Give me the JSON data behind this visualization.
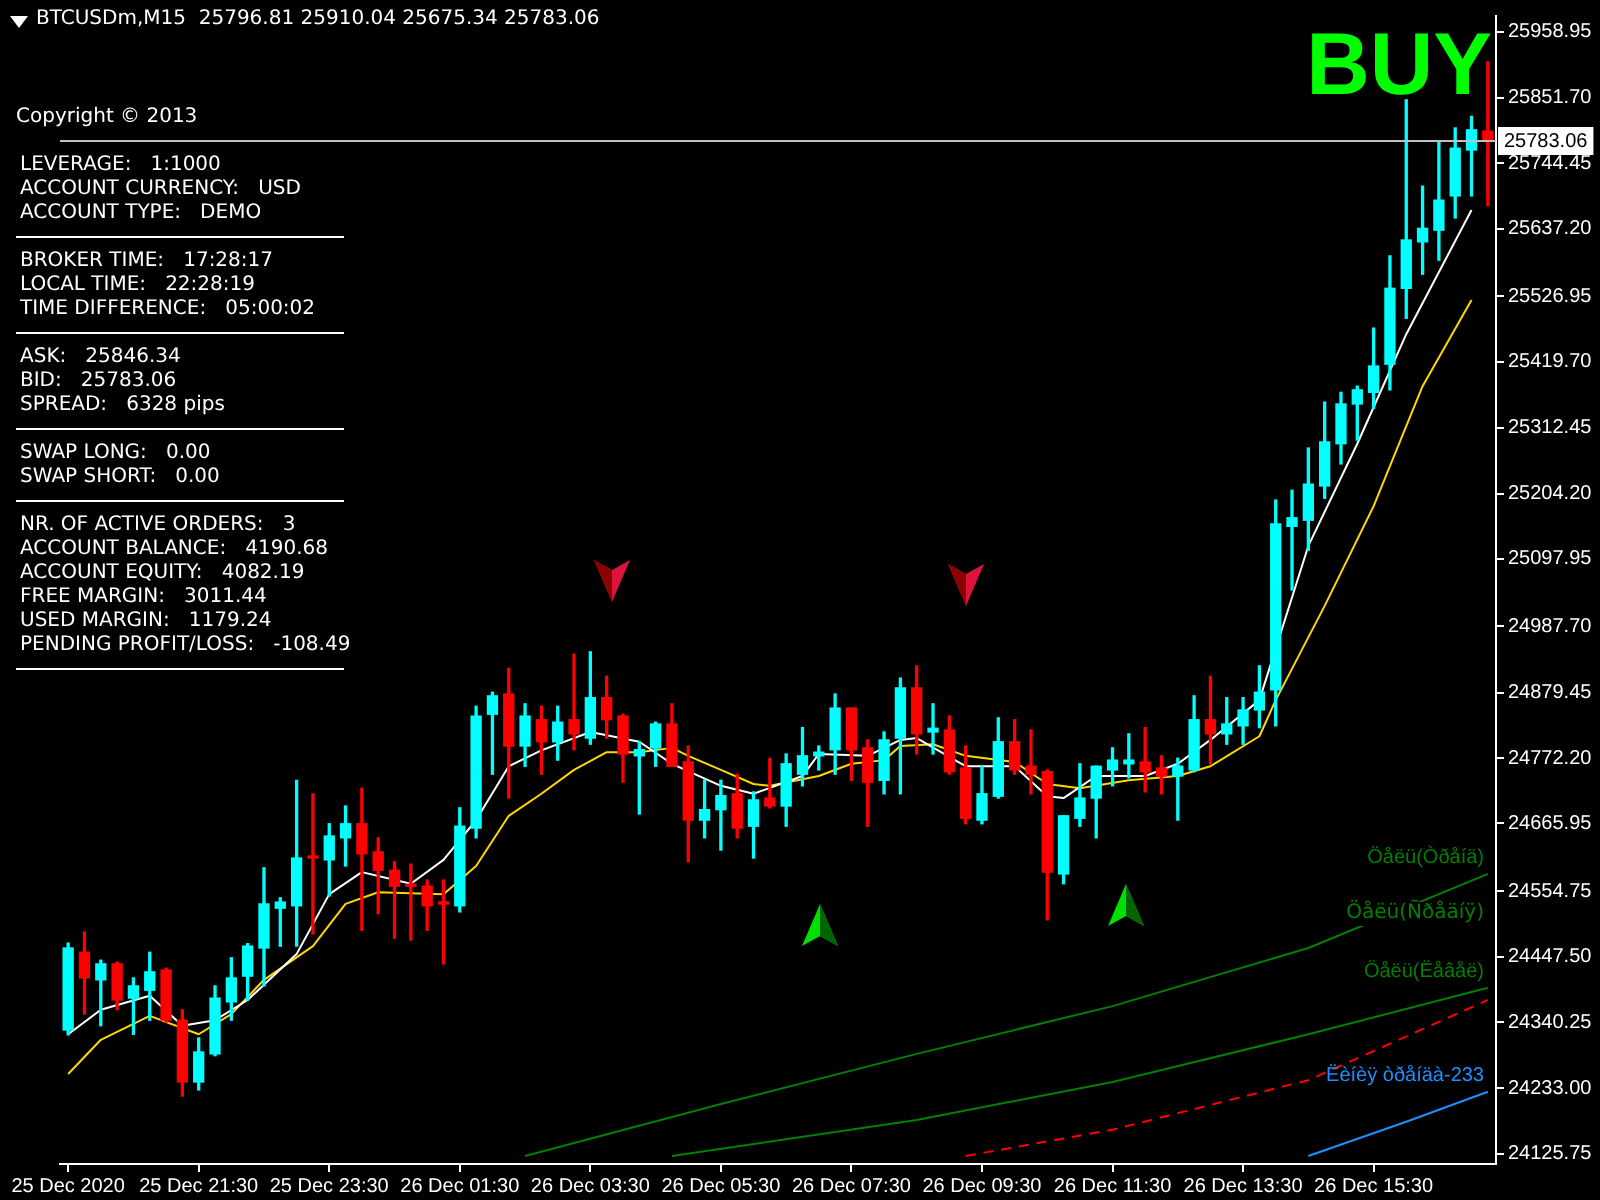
{
  "chart_data": {
    "type": "candlestick",
    "annotations": [
      "BTCUSDm,M15  25796.81 25910.04 25675.34 25783.06",
      "BUY",
      "Copyright © 2013",
      "LEVERAGE:   1:1000",
      "ACCOUNT CURRENCY:   USD",
      "ACCOUNT TYPE:   DEMO",
      "BROKER TIME:   17:28:17",
      "LOCAL TIME:   22:28:19",
      "TIME DIFFERENCE:   05:00:02",
      "ASK:   25846.34",
      "BID:   25783.06",
      "SPREAD:   6328 pips",
      "SWAP LONG:   0.00",
      "SWAP SHORT:   0.00",
      "NR. OF ACTIVE ORDERS:   3",
      "ACCOUNT BALANCE:   4190.68",
      "ACCOUNT EQUITY:   4082.19",
      "FREE MARGIN:   3011.44",
      "USED MARGIN:   1179.24",
      "PENDING PROFIT/LOSS:   -108.49",
      "Öåëü(Ñðåäíÿ)"
    ],
    "categories": [
      "25 Dec 2020",
      null,
      null,
      null,
      null,
      null,
      null,
      null,
      "25 Dec 21:30",
      null,
      null,
      null,
      null,
      null,
      null,
      null,
      "25 Dec 23:30",
      null,
      null,
      null,
      null,
      null,
      null,
      null,
      "26 Dec 01:30",
      null,
      null,
      null,
      null,
      null,
      null,
      null,
      "26 Dec 03:30",
      null,
      null,
      null,
      null,
      null,
      null,
      null,
      "26 Dec 05:30",
      null,
      null,
      null,
      null,
      null,
      null,
      null,
      "26 Dec 07:30",
      null,
      null,
      null,
      null,
      null,
      null,
      null,
      "26 Dec 09:30",
      null,
      null,
      null,
      null,
      null,
      null,
      null,
      "26 Dec 11:30",
      null,
      null,
      null,
      null,
      null,
      null,
      null,
      "26 Dec 13:30",
      null,
      null,
      null,
      null,
      null,
      null,
      null,
      "26 Dec 15:30",
      null,
      null,
      null,
      null,
      null,
      null,
      null
    ],
    "ohlc": [
      [
        24328,
        24470,
        24320,
        24462
      ],
      [
        24455,
        24488,
        24354,
        24413
      ],
      [
        24410,
        24442,
        24335,
        24436
      ],
      [
        24436,
        24439,
        24361,
        24377
      ],
      [
        24380,
        24413,
        24321,
        24400
      ],
      [
        24393,
        24455,
        24344,
        24423
      ],
      [
        24426,
        24429,
        24341,
        24344
      ],
      [
        24344,
        24361,
        24220,
        24243
      ],
      [
        24243,
        24315,
        24230,
        24292
      ],
      [
        24289,
        24400,
        24286,
        24380
      ],
      [
        24374,
        24446,
        24344,
        24413
      ],
      [
        24416,
        24469,
        24377,
        24465
      ],
      [
        24462,
        24593,
        24400,
        24534
      ],
      [
        24527,
        24544,
        24465,
        24537
      ],
      [
        24531,
        24736,
        24465,
        24609
      ],
      [
        24612,
        24714,
        24485,
        24609
      ],
      [
        24606,
        24665,
        24547,
        24645
      ],
      [
        24642,
        24694,
        24596,
        24665
      ],
      [
        24665,
        24723,
        24491,
        24616
      ],
      [
        24619,
        24642,
        24518,
        24589
      ],
      [
        24589,
        24603,
        24478,
        24563
      ],
      [
        24566,
        24599,
        24475,
        24563
      ],
      [
        24563,
        24573,
        24491,
        24531
      ],
      [
        24537,
        24573,
        24436,
        24534
      ],
      [
        24531,
        24691,
        24521,
        24661
      ],
      [
        24658,
        24857,
        24642,
        24841
      ],
      [
        24844,
        24880,
        24746,
        24874
      ],
      [
        24877,
        24919,
        24707,
        24792
      ],
      [
        24792,
        24861,
        24759,
        24841
      ],
      [
        24835,
        24857,
        24746,
        24799
      ],
      [
        24799,
        24857,
        24769,
        24831
      ],
      [
        24835,
        24942,
        24786,
        24812
      ],
      [
        24805,
        24946,
        24795,
        24871
      ],
      [
        24871,
        24906,
        24805,
        24835
      ],
      [
        24841,
        24844,
        24733,
        24779
      ],
      [
        24776,
        24799,
        24681,
        24786
      ],
      [
        24789,
        24831,
        24759,
        24828
      ],
      [
        24828,
        24861,
        24759,
        24759
      ],
      [
        24766,
        24792,
        24603,
        24671
      ],
      [
        24671,
        24736,
        24642,
        24688
      ],
      [
        24688,
        24736,
        24622,
        24711
      ],
      [
        24714,
        24746,
        24642,
        24658
      ],
      [
        24661,
        24717,
        24609,
        24704
      ],
      [
        24707,
        24772,
        24691,
        24694
      ],
      [
        24694,
        24779,
        24661,
        24763
      ],
      [
        24746,
        24822,
        24727,
        24776
      ],
      [
        24776,
        24792,
        24753,
        24782
      ],
      [
        24786,
        24877,
        24746,
        24854
      ],
      [
        24854,
        24854,
        24736,
        24786
      ],
      [
        24789,
        24802,
        24661,
        24733
      ],
      [
        24736,
        24815,
        24714,
        24802
      ],
      [
        24805,
        24903,
        24714,
        24887
      ],
      [
        24887,
        24923,
        24779,
        24812
      ],
      [
        24815,
        24861,
        24779,
        24821
      ],
      [
        24818,
        24841,
        24746,
        24750
      ],
      [
        24756,
        24792,
        24665,
        24674
      ],
      [
        24671,
        24759,
        24665,
        24714
      ],
      [
        24710,
        24838,
        24707,
        24799
      ],
      [
        24799,
        24835,
        24746,
        24753
      ],
      [
        24759,
        24818,
        24714,
        24746
      ],
      [
        24750,
        24753,
        24508,
        24586
      ],
      [
        24583,
        24678,
        24567,
        24678
      ],
      [
        24674,
        24763,
        24661,
        24707
      ],
      [
        24707,
        24759,
        24642,
        24759
      ],
      [
        24753,
        24789,
        24727,
        24769
      ],
      [
        24763,
        24812,
        24740,
        24769
      ],
      [
        24766,
        24822,
        24717,
        24750
      ],
      [
        24756,
        24776,
        24714,
        24743
      ],
      [
        24743,
        24772,
        24671,
        24759
      ],
      [
        24753,
        24874,
        24750,
        24835
      ],
      [
        24835,
        24906,
        24763,
        24812
      ],
      [
        24812,
        24871,
        24795,
        24828
      ],
      [
        24825,
        24871,
        24795,
        24851
      ],
      [
        24851,
        24923,
        24822,
        24880
      ],
      [
        24884,
        25194,
        24825,
        25155
      ],
      [
        25151,
        25210,
        25047,
        25165
      ],
      [
        25161,
        25279,
        25112,
        25220
      ],
      [
        25217,
        25354,
        25197,
        25289
      ],
      [
        25286,
        25370,
        25253,
        25351
      ],
      [
        25351,
        25380,
        25292,
        25374
      ],
      [
        25370,
        25475,
        25344,
        25413
      ],
      [
        25416,
        25593,
        25374,
        25540
      ],
      [
        25540,
        25848,
        25491,
        25619
      ],
      [
        25616,
        25707,
        25563,
        25638
      ],
      [
        25635,
        25779,
        25586,
        25684
      ],
      [
        25691,
        25802,
        25655,
        25769
      ],
      [
        25766,
        25821,
        25691,
        25799
      ],
      [
        25796.81,
        25910.04,
        25675.34,
        25783.06
      ]
    ],
    "colors": [
      "#00ffff",
      "#ff0000",
      "#00ffff",
      "#ff0000",
      "#00ffff",
      "#00ffff",
      "#ff0000",
      "#ff0000",
      "#00ffff",
      "#00ffff",
      "#00ffff",
      "#00ffff",
      "#00ffff",
      "#00ffff",
      "#00ffff",
      "#ff0000",
      "#00ffff",
      "#00ffff",
      "#ff0000",
      "#ff0000",
      "#ff0000",
      "#ff0000",
      "#ff0000",
      "#ff0000",
      "#00ffff",
      "#00ffff",
      "#00ffff",
      "#ff0000",
      "#00ffff",
      "#ff0000",
      "#00ffff",
      "#ff0000",
      "#00ffff",
      "#ff0000",
      "#ff0000",
      "#00ffff",
      "#00ffff",
      "#ff0000",
      "#ff0000",
      "#00ffff",
      "#00ffff",
      "#ff0000",
      "#00ffff",
      "#ff0000",
      "#00ffff",
      "#00ffff",
      "#00ffff",
      "#00ffff",
      "#ff0000",
      "#ff0000",
      "#00ffff",
      "#00ffff",
      "#ff0000",
      "#00ffff",
      "#ff0000",
      "#ff0000",
      "#00ffff",
      "#00ffff",
      "#ff0000",
      "#ff0000",
      "#ff0000",
      "#00ffff",
      "#00ffff",
      "#00ffff",
      "#00ffff",
      "#00ffff",
      "#ff0000",
      "#ff0000",
      "#00ffff",
      "#00ffff",
      "#ff0000",
      "#00ffff",
      "#00ffff",
      "#00ffff",
      "#00ffff",
      "#00ffff",
      "#00ffff",
      "#00ffff",
      "#00ffff",
      "#00ffff",
      "#00ffff",
      "#00ffff",
      "#00ffff",
      "#00ffff",
      "#00ffff",
      "#00ffff",
      "#00ffff",
      "#ff0000"
    ],
    "series": [
      {
        "type": "line",
        "color": "#ffffff",
        "values": [
          24321,
          null,
          24361,
          null,
          null,
          24384,
          null,
          24335,
          null,
          24344,
          null,
          24377,
          null,
          null,
          24452,
          null,
          24550,
          null,
          24586,
          null,
          null,
          24567,
          null,
          24606,
          null,
          24671,
          null,
          24759,
          null,
          24785,
          null,
          null,
          24815,
          null,
          null,
          24799,
          null,
          24763,
          null,
          null,
          24727,
          null,
          24714,
          null,
          null,
          24743,
          24779,
          null,
          null,
          24776,
          null,
          24802,
          24805,
          null,
          null,
          24759,
          null,
          null,
          24759,
          null,
          24710,
          24707,
          null,
          24743,
          null,
          null,
          24743,
          null,
          24763,
          null,
          24802,
          null,
          null,
          24867,
          null,
          null,
          25119,
          null,
          null,
          25286,
          null,
          null,
          25465,
          null,
          null,
          null,
          25668,
          null
        ]
      },
      {
        "type": "line",
        "color": "#ffd700",
        "values": [
          24256,
          null,
          24312,
          null,
          null,
          24351,
          null,
          null,
          24321,
          null,
          24354,
          null,
          24410,
          null,
          null,
          24465,
          null,
          24534,
          null,
          24553,
          null,
          null,
          null,
          24550,
          null,
          24596,
          null,
          24678,
          null,
          24714,
          null,
          24753,
          null,
          24782,
          null,
          24782,
          null,
          24789,
          24776,
          null,
          24753,
          null,
          24730,
          24727,
          null,
          null,
          24743,
          null,
          24763,
          null,
          24769,
          24792,
          null,
          24795,
          null,
          24776,
          null,
          null,
          24766,
          null,
          24730,
          null,
          24723,
          null,
          null,
          24736,
          null,
          null,
          24743,
          null,
          24759,
          null,
          null,
          24808,
          24867,
          null,
          null,
          25021,
          null,
          null,
          25184,
          null,
          null,
          25380,
          null,
          null,
          25521,
          null
        ]
      },
      {
        "type": "line",
        "name": "Öåëü(Òðåíä)",
        "color": "#008000",
        "values": [
          null,
          null,
          null,
          null,
          null,
          null,
          null,
          null,
          null,
          null,
          null,
          null,
          null,
          null,
          null,
          null,
          null,
          null,
          null,
          null,
          null,
          null,
          null,
          null,
          null,
          null,
          null,
          null,
          24122,
          null,
          null,
          null,
          null,
          null,
          null,
          null,
          null,
          null,
          null,
          null,
          24207,
          null,
          null,
          null,
          null,
          null,
          null,
          null,
          null,
          null,
          null,
          null,
          24289,
          null,
          null,
          null,
          null,
          null,
          null,
          null,
          null,
          null,
          null,
          null,
          24367,
          null,
          null,
          null,
          null,
          null,
          null,
          null,
          null,
          null,
          null,
          null,
          24462,
          null,
          null,
          null,
          null,
          null,
          null,
          null,
          null,
          null,
          null,
          24583
        ]
      },
      {
        "type": "line",
        "name": "Öåëü(Ëåâåë)",
        "color": "#008000",
        "values": [
          null,
          null,
          null,
          null,
          null,
          null,
          null,
          null,
          null,
          null,
          null,
          null,
          null,
          null,
          null,
          null,
          null,
          null,
          null,
          null,
          null,
          null,
          null,
          null,
          null,
          null,
          null,
          null,
          null,
          null,
          null,
          null,
          null,
          null,
          null,
          null,
          null,
          24122,
          null,
          null,
          null,
          null,
          null,
          null,
          null,
          null,
          null,
          null,
          null,
          null,
          null,
          null,
          24181,
          null,
          null,
          null,
          null,
          null,
          null,
          null,
          null,
          null,
          null,
          null,
          24243,
          null,
          null,
          null,
          null,
          null,
          null,
          null,
          null,
          null,
          null,
          null,
          24321,
          null,
          null,
          null,
          null,
          null,
          null,
          null,
          null,
          null,
          null,
          24397
        ]
      },
      {
        "type": "line",
        "color": "#ff0000",
        "line_style": "dashed",
        "values": [
          null,
          null,
          null,
          null,
          null,
          null,
          null,
          null,
          null,
          null,
          null,
          null,
          null,
          null,
          null,
          null,
          null,
          null,
          null,
          null,
          null,
          null,
          null,
          null,
          null,
          null,
          null,
          null,
          null,
          null,
          null,
          null,
          null,
          null,
          null,
          null,
          null,
          null,
          null,
          null,
          null,
          null,
          null,
          null,
          null,
          null,
          null,
          null,
          null,
          null,
          null,
          null,
          null,
          null,
          null,
          24122,
          null,
          null,
          null,
          null,
          null,
          null,
          null,
          null,
          24165,
          null,
          null,
          null,
          null,
          null,
          null,
          null,
          null,
          null,
          null,
          null,
          24246,
          null,
          null,
          null,
          null,
          null,
          null,
          null,
          null,
          null,
          null,
          24377
        ]
      },
      {
        "type": "line",
        "name": "Ëèíèÿ òðåíäà-233",
        "color": "#1e90ff",
        "values": [
          null,
          null,
          null,
          null,
          null,
          null,
          null,
          null,
          null,
          null,
          null,
          null,
          null,
          null,
          null,
          null,
          null,
          null,
          null,
          null,
          null,
          null,
          null,
          null,
          null,
          null,
          null,
          null,
          null,
          null,
          null,
          null,
          null,
          null,
          null,
          null,
          null,
          null,
          null,
          null,
          null,
          null,
          null,
          null,
          null,
          null,
          null,
          null,
          null,
          null,
          null,
          null,
          null,
          null,
          null,
          null,
          null,
          null,
          null,
          null,
          null,
          null,
          null,
          null,
          null,
          null,
          null,
          null,
          null,
          null,
          null,
          null,
          null,
          null,
          null,
          null,
          24122,
          null,
          null,
          null,
          null,
          null,
          24178,
          null,
          null,
          null,
          null,
          24227
        ]
      }
    ],
    "ylim": [
      24109,
      25985
    ],
    "yticks": [
      {
        "value": 24125.75,
        "label": "24125.75"
      },
      {
        "value": 24233,
        "label": "24233.00"
      },
      {
        "value": 24340.25,
        "label": "24340.25"
      },
      {
        "value": 24447.5,
        "label": "24447.50"
      },
      {
        "value": 24554.75,
        "label": "24554.75"
      },
      {
        "value": 24665.95,
        "label": "24665.95"
      },
      {
        "value": 24772.2,
        "label": "24772.20"
      },
      {
        "value": 24879.45,
        "label": "24879.45"
      },
      {
        "value": 24987.7,
        "label": "24987.70"
      },
      {
        "value": 25097.95,
        "label": "25097.95"
      },
      {
        "value": 25204.2,
        "label": "25204.20"
      },
      {
        "value": 25312.45,
        "label": "25312.45"
      },
      {
        "value": 25419.7,
        "label": "25419.70"
      },
      {
        "value": 25526.95,
        "label": "25526.95"
      },
      {
        "value": 25637.2,
        "label": "25637.20"
      },
      {
        "value": 25744.45,
        "label": "25744.45"
      },
      {
        "value": 25851.7,
        "label": "25851.70"
      },
      {
        "value": 25958.95,
        "label": "25958.95"
      }
    ],
    "ref_lines": [
      {
        "axis": "y",
        "value": 25783.06,
        "label": "25783.06",
        "color": "#c0c0c0"
      }
    ],
    "grid": false,
    "legend": false
  }
}
